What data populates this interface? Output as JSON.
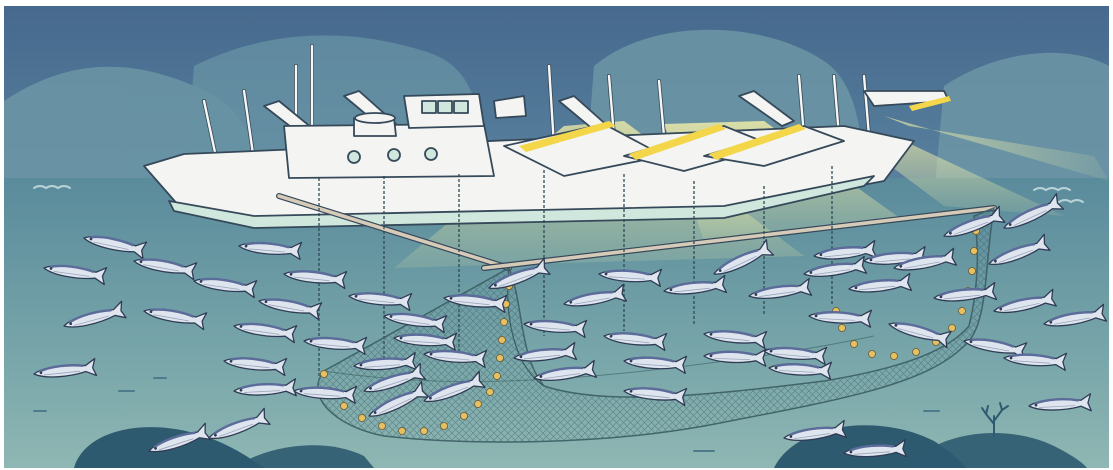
{
  "illustration": {
    "alt_text": "",
    "colors": {
      "sky_top": "#4b6f93",
      "sky_bottom": "#5d87a0",
      "hill": "#6f9aa7",
      "water_top": "#5e8e9d",
      "water_bottom": "#8db5b2",
      "seabed": "#2f5a71",
      "hull": "#f4f5f2",
      "hull_stripe": "#cde6da",
      "outline": "#3a4e5e",
      "light_beam": "#fff8b0",
      "lamp": "#f3d64a",
      "fish_body": "#dfe5ee",
      "fish_back": "#5b6c9a",
      "net": "#3a5c62",
      "float": "#e8c064",
      "boom": "#d6cbb8"
    },
    "icons": [
      "boat-icon",
      "fish-icon",
      "net-icon",
      "float-icon",
      "coral-icon",
      "light-beam-icon"
    ]
  }
}
